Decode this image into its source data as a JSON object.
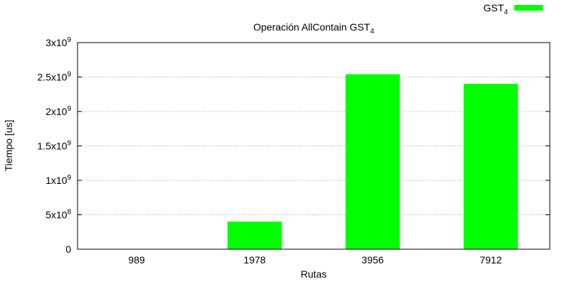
{
  "chart_data": {
    "type": "bar",
    "title": "Operación AllContain GST",
    "title_subscript": "4",
    "xlabel": "Rutas",
    "ylabel": "Tiempo [us]",
    "categories": [
      "989",
      "1978",
      "3956",
      "7912"
    ],
    "series": [
      {
        "name": "GST",
        "name_subscript": "4",
        "color": "#00ff00",
        "values": [
          0,
          400000000,
          2540000000,
          2400000000
        ]
      }
    ],
    "ylim": [
      0,
      3000000000
    ],
    "yticks": [
      {
        "value": 0,
        "mantissa": "0",
        "exp": ""
      },
      {
        "value": 500000000,
        "mantissa": "5x10",
        "exp": "8"
      },
      {
        "value": 1000000000,
        "mantissa": "1x10",
        "exp": "9"
      },
      {
        "value": 1500000000,
        "mantissa": "1.5x10",
        "exp": "9"
      },
      {
        "value": 2000000000,
        "mantissa": "2x10",
        "exp": "9"
      },
      {
        "value": 2500000000,
        "mantissa": "2.5x10",
        "exp": "9"
      },
      {
        "value": 3000000000,
        "mantissa": "3x10",
        "exp": "9"
      }
    ],
    "grid": true,
    "legend_position": "top-right"
  }
}
